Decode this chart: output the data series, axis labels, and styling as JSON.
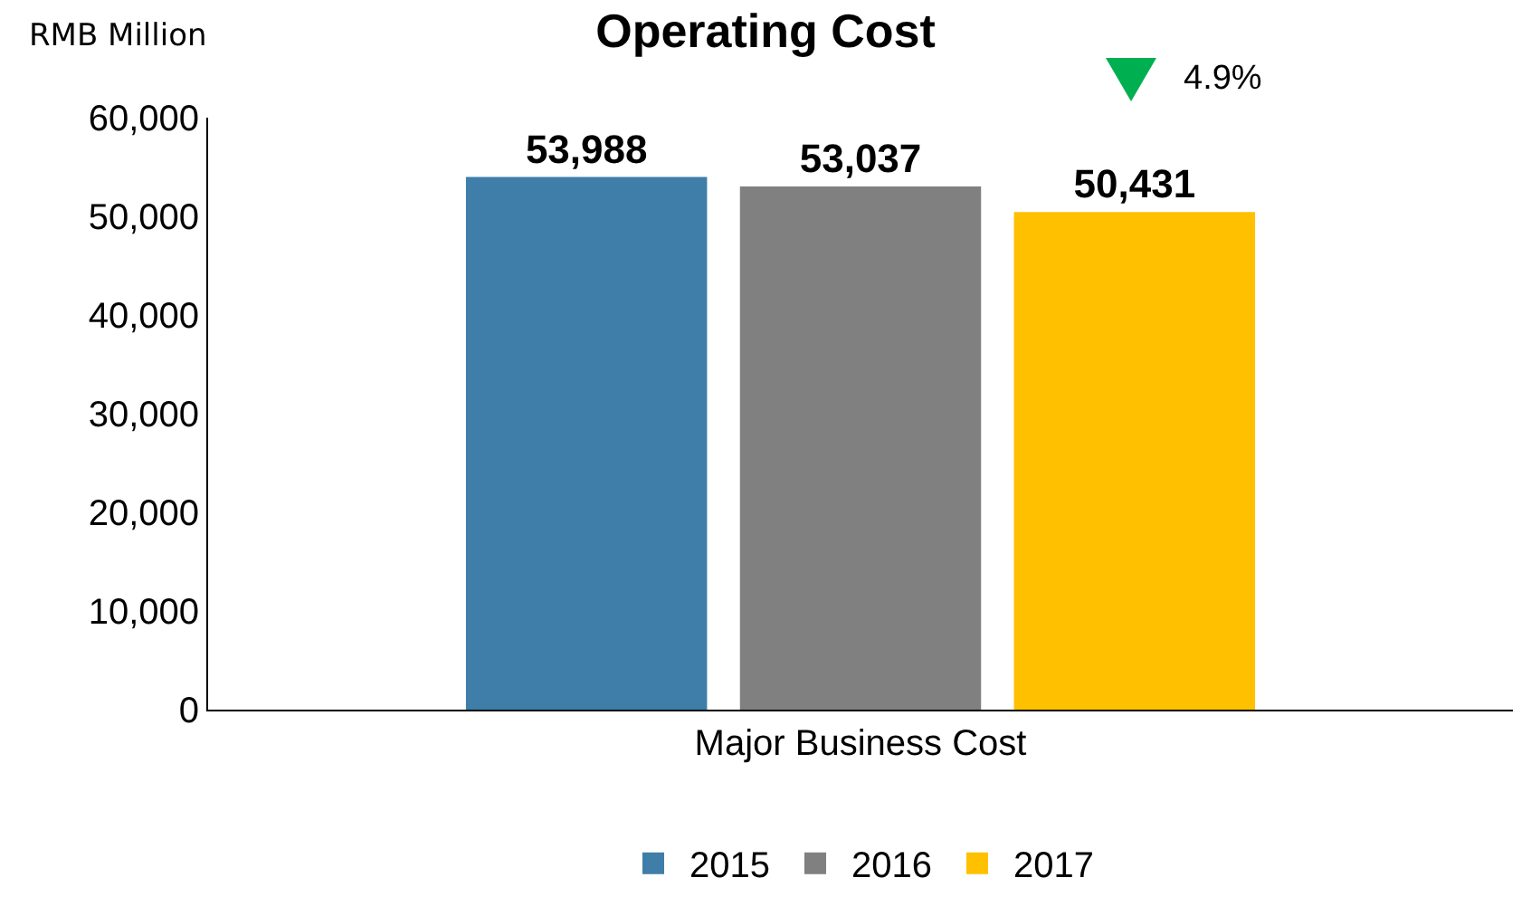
{
  "chart_data": {
    "type": "bar",
    "title": "Operating Cost",
    "ylabel": "RMB Million",
    "categories": [
      "Major Business Cost"
    ],
    "series": [
      {
        "name": "2015",
        "color": "#3e7ea9",
        "values": [
          53988
        ],
        "value_labels": [
          "53,988"
        ]
      },
      {
        "name": "2016",
        "color": "#808080",
        "values": [
          53037
        ],
        "value_labels": [
          "53,037"
        ]
      },
      {
        "name": "2017",
        "color": "#ffc000",
        "values": [
          50431
        ],
        "value_labels": [
          "50,431"
        ]
      }
    ],
    "ylim": [
      0,
      60000
    ],
    "yticks": [
      {
        "value": 0,
        "label": "0"
      },
      {
        "value": 10000,
        "label": "10,000"
      },
      {
        "value": 20000,
        "label": "20,000"
      },
      {
        "value": 30000,
        "label": "30,000"
      },
      {
        "value": 40000,
        "label": "40,000"
      },
      {
        "value": 50000,
        "label": "50,000"
      },
      {
        "value": 60000,
        "label": "60,000"
      }
    ],
    "annotations": [
      "4.9%"
    ],
    "grid": false,
    "legend": "bottom"
  }
}
